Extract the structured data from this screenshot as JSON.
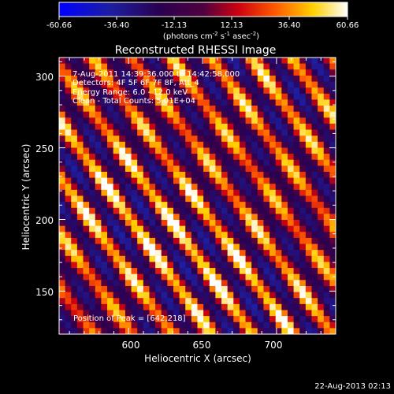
{
  "chart_data": {
    "type": "heatmap",
    "title": "Reconstructed RHESSI Image",
    "xlabel": "Heliocentric X (arcsec)",
    "ylabel": "Heliocentric Y (arcsec)",
    "xlim": [
      553,
      740
    ],
    "ylim": [
      120,
      313
    ],
    "x_ticks": [
      600,
      650,
      700
    ],
    "y_ticks": [
      150,
      200,
      250,
      300
    ],
    "colorbar": {
      "ticks": [
        "-60.66",
        "-36.40",
        "-12.13",
        "12.13",
        "36.40",
        "60.66"
      ],
      "label": "(photons cm",
      "exp1": "-2",
      "label_mid": " s",
      "exp2": "-1",
      "label_end": " asec",
      "exp3": "-2",
      "label_close": ")",
      "range": [
        -60.66,
        60.66
      ]
    },
    "annotations": [
      "7-Aug-2011 14:39:36.000 to 14:42:58.000",
      "Detectors: 4F 5F 6F 7F 8F, Att_4",
      "Energy Range: 6.0 - 12.0 keV",
      "Clean - Total Counts: 5.01E+04"
    ],
    "peak_text": "Position of Peak = [642,218]",
    "peak": [
      642,
      218
    ],
    "pattern": {
      "grid_nx": 46,
      "grid_ny": 46,
      "stripe_direction_deg": -55,
      "stripe_period_arcsec": 22
    }
  },
  "footer": {
    "date": "22-Aug-2013 02:13"
  }
}
